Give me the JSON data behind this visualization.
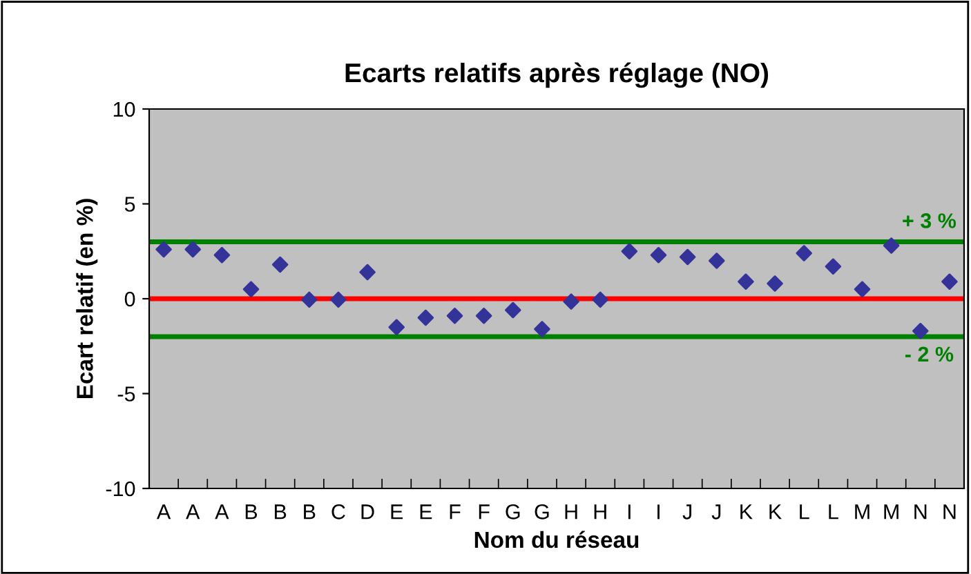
{
  "chart_data": {
    "type": "scatter",
    "title": "Ecarts relatifs après réglage (NO)",
    "xlabel": "Nom du réseau",
    "ylabel": "Ecart relatif (en %)",
    "categories": [
      "A",
      "A",
      "A",
      "B",
      "B",
      "B",
      "C",
      "D",
      "E",
      "E",
      "F",
      "F",
      "G",
      "G",
      "H",
      "H",
      "I",
      "I",
      "J",
      "J",
      "K",
      "K",
      "L",
      "L",
      "M",
      "M",
      "N",
      "N"
    ],
    "series": [
      {
        "color": "#333399",
        "values": [
          2.6,
          2.6,
          2.3,
          0.5,
          1.8,
          -0.05,
          -0.05,
          1.4,
          -1.5,
          -1.0,
          -0.9,
          -0.9,
          -0.6,
          -1.6,
          -0.15,
          -0.05,
          2.5,
          2.3,
          2.2,
          2.0,
          0.9,
          0.8,
          2.4,
          1.7,
          0.5,
          2.8,
          -1.7,
          0.9
        ]
      }
    ],
    "marker": "diamond",
    "ylim": [
      -10,
      10
    ],
    "yticks": [
      -10,
      -5,
      0,
      5,
      10
    ],
    "grid": false,
    "legend": false,
    "ref_lines": [
      {
        "axis": "y",
        "value": 3,
        "label": "+ 3 %",
        "color": "#008000"
      },
      {
        "axis": "y",
        "value": 0,
        "label": null,
        "color": "#ff0000"
      },
      {
        "axis": "y",
        "value": -2,
        "label": "- 2 %",
        "color": "#008000"
      }
    ]
  }
}
